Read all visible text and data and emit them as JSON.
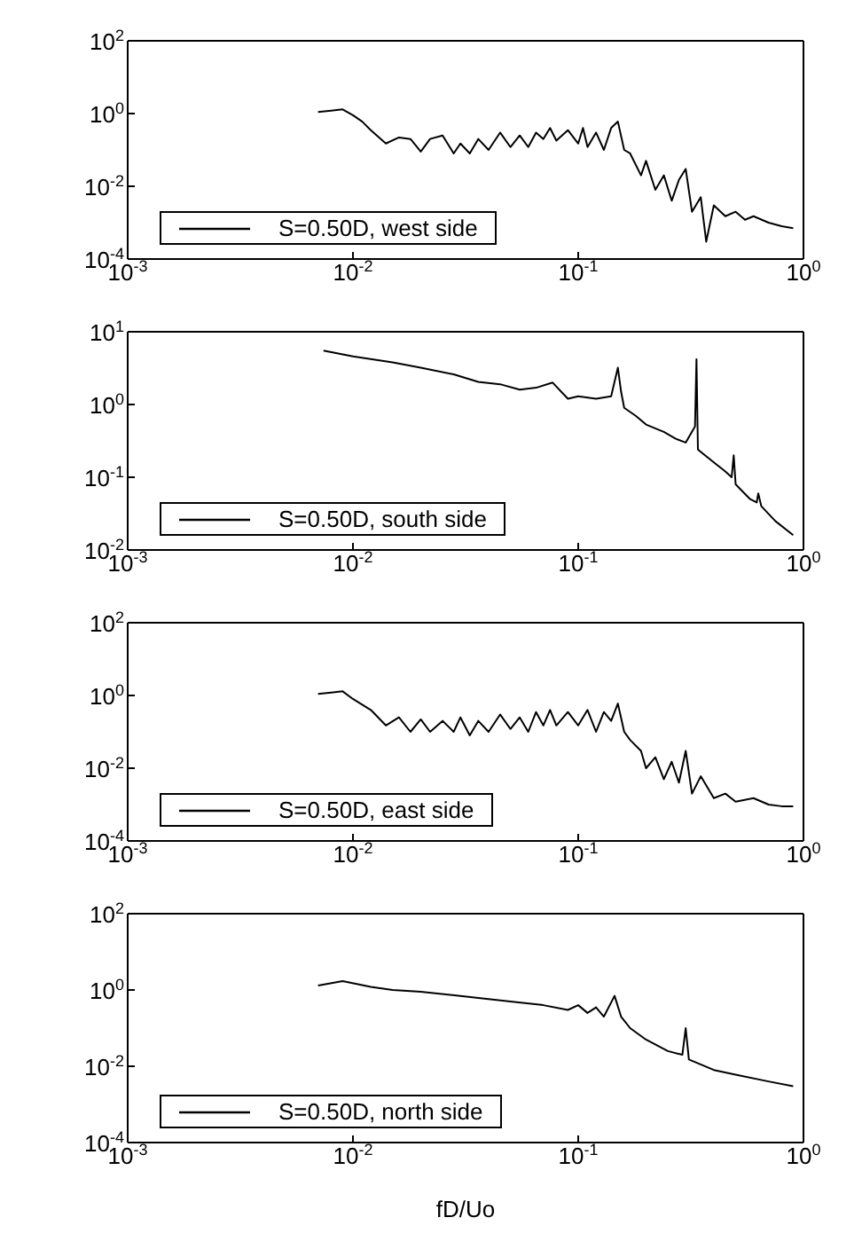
{
  "chart_data": [
    {
      "type": "line",
      "legend": "bottom left",
      "marker": "none",
      "log": "xy",
      "xlim": [
        0.001,
        1
      ],
      "xticks": [
        {
          "value": 0.001,
          "label": "10$^{-3}$"
        },
        {
          "value": 0.01,
          "label": "10$^{-2}$"
        },
        {
          "value": 0.1,
          "label": "10$^{-1}$"
        },
        {
          "value": 1,
          "label": "10$^{0}$"
        }
      ],
      "ylim": [
        0.0001,
        100
      ],
      "yticks": [
        {
          "value": 0.0001,
          "label": "10$^{-4}$"
        },
        {
          "value": 0.01,
          "label": "10$^{-2}$"
        },
        {
          "value": 1,
          "label": "10$^{0}$"
        },
        {
          "value": 100,
          "label": "10$^{2}$"
        }
      ],
      "series": [
        {
          "name": "S=0.50D, west side",
          "color": "#000000",
          "x": [
            0.007,
            0.008,
            0.009,
            0.01,
            0.011,
            0.012,
            0.014,
            0.016,
            0.018,
            0.02,
            0.022,
            0.025,
            0.028,
            0.03,
            0.033,
            0.036,
            0.04,
            0.045,
            0.05,
            0.055,
            0.06,
            0.065,
            0.07,
            0.075,
            0.08,
            0.09,
            0.1,
            0.105,
            0.11,
            0.12,
            0.13,
            0.14,
            0.15,
            0.16,
            0.17,
            0.19,
            0.2,
            0.22,
            0.24,
            0.26,
            0.28,
            0.3,
            0.32,
            0.35,
            0.37,
            0.4,
            0.45,
            0.5,
            0.55,
            0.6,
            0.7,
            0.8,
            0.9
          ],
          "values": [
            1.1,
            1.2,
            1.3,
            0.9,
            0.6,
            0.35,
            0.15,
            0.22,
            0.2,
            0.09,
            0.2,
            0.25,
            0.08,
            0.15,
            0.08,
            0.2,
            0.1,
            0.3,
            0.12,
            0.25,
            0.12,
            0.3,
            0.2,
            0.4,
            0.18,
            0.35,
            0.15,
            0.4,
            0.12,
            0.3,
            0.1,
            0.4,
            0.6,
            0.1,
            0.08,
            0.02,
            0.05,
            0.008,
            0.02,
            0.004,
            0.015,
            0.03,
            0.002,
            0.005,
            0.0003,
            0.003,
            0.0015,
            0.002,
            0.0012,
            0.0015,
            0.001,
            0.0008,
            0.0007
          ]
        }
      ]
    },
    {
      "type": "line",
      "legend": "bottom left",
      "marker": "none",
      "log": "xy",
      "xlim": [
        0.001,
        1
      ],
      "xticks": [
        {
          "value": 0.001,
          "label": "10$^{-3}$"
        },
        {
          "value": 0.01,
          "label": "10$^{-2}$"
        },
        {
          "value": 0.1,
          "label": "10$^{-1}$"
        },
        {
          "value": 1,
          "label": "10$^{0}$"
        }
      ],
      "ylim": [
        0.01,
        10
      ],
      "yticks": [
        {
          "value": 0.01,
          "label": "10$^{-2}$"
        },
        {
          "value": 0.1,
          "label": "10$^{-1}$"
        },
        {
          "value": 1,
          "label": "10$^{0}$"
        },
        {
          "value": 10,
          "label": "10$^{1}$"
        }
      ],
      "series": [
        {
          "name": "S=0.50D, south side",
          "color": "#000000",
          "x": [
            0.0074,
            0.01,
            0.015,
            0.02,
            0.028,
            0.036,
            0.045,
            0.055,
            0.065,
            0.077,
            0.09,
            0.1,
            0.12,
            0.14,
            0.15,
            0.155,
            0.16,
            0.18,
            0.2,
            0.24,
            0.27,
            0.3,
            0.33,
            0.335,
            0.34,
            0.4,
            0.45,
            0.48,
            0.49,
            0.5,
            0.58,
            0.62,
            0.63,
            0.65,
            0.75,
            0.9
          ],
          "values": [
            5.5,
            4.6,
            3.8,
            3.2,
            2.6,
            2.05,
            1.9,
            1.6,
            1.7,
            2.0,
            1.2,
            1.3,
            1.2,
            1.3,
            3.2,
            1.5,
            0.9,
            0.7,
            0.53,
            0.42,
            0.34,
            0.3,
            0.5,
            4.2,
            0.24,
            0.16,
            0.12,
            0.1,
            0.2,
            0.08,
            0.05,
            0.045,
            0.06,
            0.04,
            0.025,
            0.016
          ]
        }
      ]
    },
    {
      "type": "line",
      "legend": "bottom left",
      "marker": "none",
      "log": "xy",
      "xlim": [
        0.001,
        1
      ],
      "xticks": [
        {
          "value": 0.001,
          "label": "10$^{-3}$"
        },
        {
          "value": 0.01,
          "label": "10$^{-2}$"
        },
        {
          "value": 0.1,
          "label": "10$^{-1}$"
        },
        {
          "value": 1,
          "label": "10$^{0}$"
        }
      ],
      "ylim": [
        0.0001,
        100
      ],
      "yticks": [
        {
          "value": 0.0001,
          "label": "10$^{-4}$"
        },
        {
          "value": 0.01,
          "label": "10$^{-2}$"
        },
        {
          "value": 1,
          "label": "10$^{0}$"
        },
        {
          "value": 100,
          "label": "10$^{2}$"
        }
      ],
      "series": [
        {
          "name": "S=0.50D, east side",
          "color": "#000000",
          "x": [
            0.007,
            0.008,
            0.009,
            0.01,
            0.012,
            0.014,
            0.016,
            0.018,
            0.02,
            0.022,
            0.025,
            0.028,
            0.03,
            0.033,
            0.036,
            0.04,
            0.045,
            0.05,
            0.055,
            0.06,
            0.065,
            0.07,
            0.075,
            0.08,
            0.09,
            0.1,
            0.11,
            0.12,
            0.13,
            0.14,
            0.15,
            0.16,
            0.17,
            0.19,
            0.2,
            0.22,
            0.24,
            0.26,
            0.28,
            0.3,
            0.32,
            0.35,
            0.4,
            0.45,
            0.5,
            0.6,
            0.7,
            0.8,
            0.9
          ],
          "values": [
            1.1,
            1.2,
            1.3,
            0.8,
            0.4,
            0.15,
            0.25,
            0.1,
            0.22,
            0.1,
            0.2,
            0.1,
            0.25,
            0.08,
            0.2,
            0.1,
            0.3,
            0.12,
            0.25,
            0.1,
            0.35,
            0.15,
            0.4,
            0.15,
            0.35,
            0.15,
            0.4,
            0.1,
            0.35,
            0.2,
            0.6,
            0.1,
            0.06,
            0.03,
            0.01,
            0.02,
            0.005,
            0.015,
            0.004,
            0.03,
            0.002,
            0.006,
            0.0015,
            0.002,
            0.0012,
            0.0015,
            0.001,
            0.0009,
            0.0009
          ]
        }
      ]
    },
    {
      "type": "line",
      "legend": "bottom left",
      "marker": "none",
      "log": "xy",
      "xlabel": "fD/Uo",
      "xlim": [
        0.001,
        1
      ],
      "xticks": [
        {
          "value": 0.001,
          "label": "10$^{-3}$"
        },
        {
          "value": 0.01,
          "label": "10$^{-2}$"
        },
        {
          "value": 0.1,
          "label": "10$^{-1}$"
        },
        {
          "value": 1,
          "label": "10$^{0}$"
        }
      ],
      "ylim": [
        0.0001,
        100
      ],
      "yticks": [
        {
          "value": 0.0001,
          "label": "10$^{-4}$"
        },
        {
          "value": 0.01,
          "label": "10$^{-2}$"
        },
        {
          "value": 1,
          "label": "10$^{0}$"
        },
        {
          "value": 100,
          "label": "10$^{2}$"
        }
      ],
      "series": [
        {
          "name": "S=0.50D, north side",
          "color": "#000000",
          "x": [
            0.007,
            0.009,
            0.012,
            0.015,
            0.02,
            0.03,
            0.05,
            0.07,
            0.09,
            0.1,
            0.11,
            0.12,
            0.13,
            0.145,
            0.155,
            0.17,
            0.2,
            0.25,
            0.29,
            0.3,
            0.31,
            0.4,
            0.5,
            0.7,
            0.9
          ],
          "values": [
            1.3,
            1.7,
            1.2,
            1.0,
            0.9,
            0.7,
            0.5,
            0.4,
            0.3,
            0.4,
            0.25,
            0.35,
            0.2,
            0.7,
            0.2,
            0.1,
            0.05,
            0.025,
            0.02,
            0.1,
            0.015,
            0.008,
            0.006,
            0.004,
            0.003
          ]
        }
      ]
    }
  ]
}
